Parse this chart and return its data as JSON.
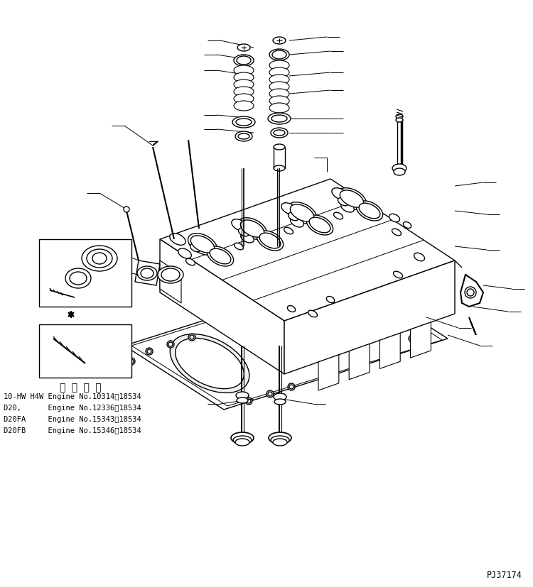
{
  "part_number": "PJ37174",
  "background_color": "#ffffff",
  "text_color": "#000000",
  "applicable_label": "適 用 号 機",
  "engine_lines": [
    "10-HW H4W Engine No.10314～18534",
    "D20,      Engine No.12336～18534",
    "D20FA     Engine No.15343～18534",
    "D20FB     Engine No.15346～18534"
  ],
  "line_color": "#000000",
  "lw": 1.0,
  "font_size_small": 7.5,
  "font_size_label": 10
}
